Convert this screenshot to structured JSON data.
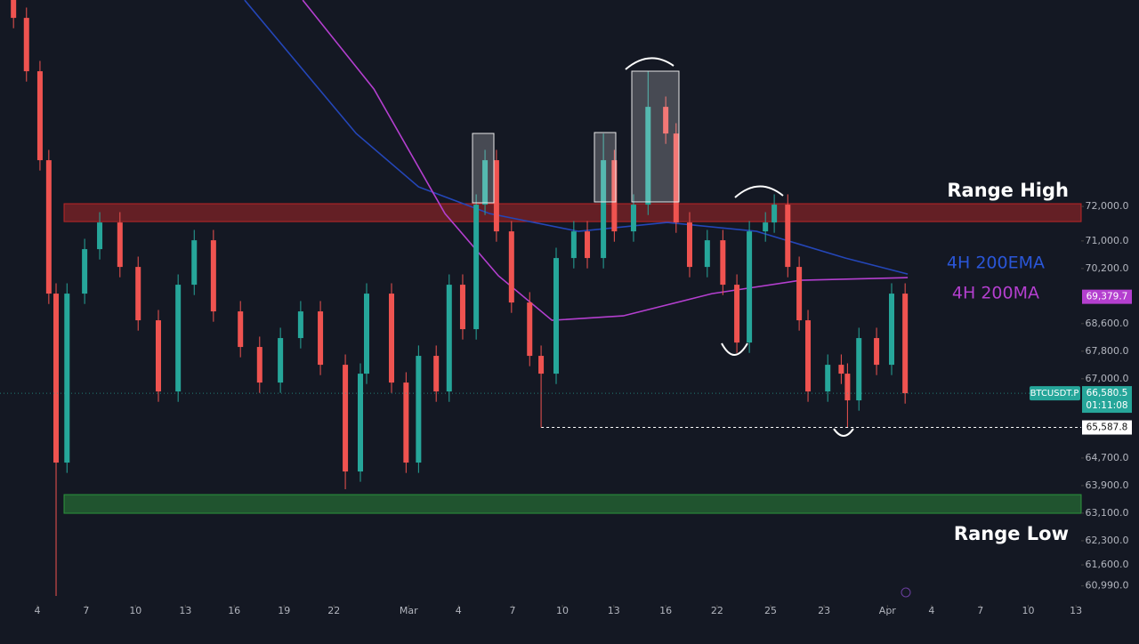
{
  "chart_data": {
    "type": "candlestick",
    "xlim": [
      -0.72,
      20.1
    ],
    "ylim": [
      60440,
      77990
    ],
    "xticks": [
      {
        "value": 0,
        "label": "4"
      },
      {
        "value": 0.94,
        "label": "7"
      },
      {
        "value": 1.89,
        "label": "10"
      },
      {
        "value": 2.85,
        "label": "13"
      },
      {
        "value": 3.79,
        "label": "16"
      },
      {
        "value": 4.75,
        "label": "19"
      },
      {
        "value": 5.71,
        "label": "22"
      },
      {
        "value": 7.15,
        "label": "Mar"
      },
      {
        "value": 8.11,
        "label": "4"
      },
      {
        "value": 9.15,
        "label": "7"
      },
      {
        "value": 10.11,
        "label": "10"
      },
      {
        "value": 11.1,
        "label": "13"
      },
      {
        "value": 12.1,
        "label": "16"
      },
      {
        "value": 13.09,
        "label": "22"
      },
      {
        "value": 14.12,
        "label": "25"
      },
      {
        "value": 15.15,
        "label": "23"
      },
      {
        "value": 16.37,
        "label": "Apr"
      },
      {
        "value": 17.22,
        "label": "4"
      },
      {
        "value": 18.16,
        "label": "7"
      },
      {
        "value": 19.08,
        "label": "10"
      },
      {
        "value": 20,
        "label": "13"
      }
    ],
    "yticks": [
      {
        "value": 72000,
        "label": "72,000.0"
      },
      {
        "value": 71000,
        "label": "71,000.0"
      },
      {
        "value": 70200,
        "label": "70,200.0"
      },
      {
        "value": 68600,
        "label": "68,600.0"
      },
      {
        "value": 67800,
        "label": "67,800.0"
      },
      {
        "value": 67000,
        "label": "67,000.0"
      },
      {
        "value": 64700,
        "label": "64,700.0"
      },
      {
        "value": 63900,
        "label": "63,900.0"
      },
      {
        "value": 63100,
        "label": "63,100.0"
      },
      {
        "value": 62300,
        "label": "62,300.0"
      },
      {
        "value": 61600,
        "label": "61,600.0"
      },
      {
        "value": 60990,
        "label": "60,990.0"
      }
    ],
    "series": [
      {
        "name": "BTCUSDT.P",
        "up_color": "#26a69a",
        "down_color": "#ef5350",
        "x": [
          -0.46,
          -0.21,
          0.05,
          0.22,
          0.36,
          0.57,
          0.91,
          1.2,
          1.59,
          1.94,
          2.33,
          2.71,
          3.02,
          3.39,
          3.91,
          4.28,
          4.68,
          5.07,
          5.45,
          5.93,
          6.22,
          6.34,
          6.82,
          7.1,
          7.34,
          7.68,
          7.93,
          8.19,
          8.45,
          8.62,
          8.84,
          9.13,
          9.48,
          9.7,
          9.99,
          10.33,
          10.59,
          10.9,
          11.11,
          11.48,
          11.76,
          12.1,
          12.3,
          12.56,
          12.9,
          13.2,
          13.47,
          13.71,
          14.02,
          14.19,
          14.45,
          14.67,
          14.84,
          15.22,
          15.48,
          15.6,
          15.82,
          16.16,
          16.45,
          16.71
        ],
        "open": [
          78000,
          77471,
          75923,
          73342,
          69471,
          64568,
          69471,
          70761,
          71535,
          70245,
          68697,
          66632,
          69729,
          71019,
          68955,
          67923,
          66890,
          68181,
          68955,
          67406,
          64310,
          67148,
          69471,
          66890,
          64568,
          67665,
          66632,
          69729,
          68439,
          72052,
          73342,
          71277,
          69213,
          67665,
          67148,
          70503,
          71277,
          70503,
          73342,
          71277,
          72052,
          74890,
          74116,
          71535,
          70245,
          71019,
          69729,
          68051,
          71277,
          71535,
          72052,
          70245,
          68697,
          66632,
          67406,
          67148,
          66374,
          68181,
          67406,
          69471
        ],
        "high": [
          78300,
          77771,
          76223,
          73642,
          69771,
          69771,
          71061,
          71835,
          71835,
          70545,
          68997,
          70029,
          71319,
          71319,
          69255,
          68223,
          68481,
          69255,
          69255,
          67706,
          67448,
          69771,
          69771,
          67190,
          67965,
          67965,
          70029,
          70029,
          72352,
          73642,
          73642,
          71577,
          69513,
          67965,
          70803,
          71577,
          71577,
          74116,
          73642,
          72352,
          75923,
          75190,
          74416,
          71835,
          71319,
          71319,
          70029,
          71577,
          71835,
          72352,
          72352,
          70545,
          68997,
          67706,
          67706,
          67448,
          68481,
          68481,
          69771,
          69771
        ],
        "low": [
          77171,
          75623,
          73042,
          69171,
          60697,
          64268,
          69171,
          70461,
          69945,
          68397,
          66332,
          66332,
          69429,
          68655,
          67623,
          66590,
          66590,
          67881,
          67106,
          63794,
          64010,
          66848,
          66590,
          64268,
          64268,
          66332,
          66332,
          68139,
          68139,
          71752,
          70977,
          68913,
          67365,
          65588,
          66848,
          70203,
          70203,
          70203,
          70977,
          70977,
          71752,
          73816,
          71235,
          69945,
          69945,
          69429,
          67751,
          67751,
          70977,
          71235,
          69945,
          68397,
          66332,
          66332,
          66848,
          65600,
          66074,
          67106,
          67106,
          66280.5
        ],
        "close": [
          77471,
          75923,
          73342,
          69471,
          64568,
          69471,
          70761,
          71535,
          70245,
          68697,
          66632,
          69729,
          71019,
          68955,
          67923,
          66890,
          68181,
          68955,
          67406,
          64310,
          67148,
          69471,
          66890,
          64568,
          67665,
          66632,
          69729,
          68439,
          72052,
          73342,
          71277,
          69213,
          67665,
          67148,
          70503,
          71277,
          70503,
          73342,
          71277,
          72052,
          74890,
          74116,
          71535,
          70245,
          71019,
          69729,
          68051,
          71277,
          71535,
          72052,
          70245,
          68697,
          66632,
          67406,
          67148,
          66374,
          68181,
          67406,
          69471,
          66580.5
        ]
      }
    ],
    "overlays": [
      {
        "name": "4H 200EMA",
        "color": "#2446b8",
        "x": [
          3.99,
          6.14,
          7.34,
          8.71,
          10.42,
          12.13,
          13.85,
          15.56,
          16.76
        ],
        "values": [
          77987,
          74116,
          72568,
          71794,
          71277,
          71535,
          71277,
          70503,
          70039
        ]
      },
      {
        "name": "4H 200MA",
        "color": "#b43fcf",
        "x": [
          5.11,
          6.48,
          7.85,
          8.88,
          9.91,
          11.28,
          12.99,
          14.7,
          16.76
        ],
        "values": [
          77987,
          75406,
          71794,
          69987,
          68697,
          68826,
          69471,
          69858,
          69936
        ],
        "badge": {
          "value": 69379.7,
          "label": "69,379.7"
        }
      }
    ],
    "zones": [
      {
        "label": "Range High",
        "low": 71560,
        "high": 72080,
        "color": "#c62828"
      },
      {
        "label": "Range Low",
        "low": 63097,
        "high": 63639,
        "color": "#2e9e3e"
      }
    ],
    "levels": [
      {
        "value": 65587.8,
        "label": "65,587.8",
        "from_x": 9.7
      }
    ],
    "last_price": {
      "value": 66580.5,
      "label": "66,580.5",
      "countdown": "01:11:08"
    }
  }
}
